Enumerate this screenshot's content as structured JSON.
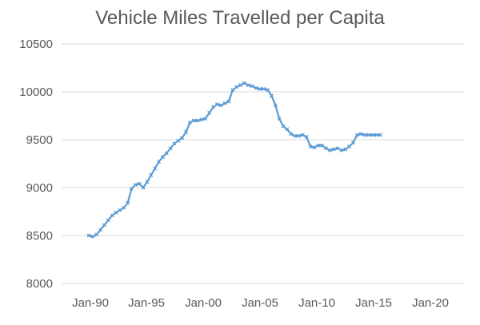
{
  "chart_data": {
    "type": "line",
    "title": "Vehicle Miles Travelled per Capita",
    "xlabel": "",
    "ylabel": "",
    "x_ticks": [
      "Jan-90",
      "Jan-95",
      "Jan-00",
      "Jan-05",
      "Jan-10",
      "Jan-15",
      "Jan-20"
    ],
    "y_ticks": [
      "8000",
      "8500",
      "9000",
      "9500",
      "10000",
      "10500"
    ],
    "xlim": [
      "1987-10",
      "2022-04"
    ],
    "ylim": [
      8000,
      10500
    ],
    "grid": true,
    "legend": "none",
    "series_color": "#5b9bd5",
    "x": [
      "1990-02",
      "1990-06",
      "1990-10",
      "1991-02",
      "1991-06",
      "1991-10",
      "1992-02",
      "1992-06",
      "1992-10",
      "1993-02",
      "1993-06",
      "1993-10",
      "1994-02",
      "1994-06",
      "1994-10",
      "1995-02",
      "1995-06",
      "1995-10",
      "1996-02",
      "1996-06",
      "1996-10",
      "1997-02",
      "1997-06",
      "1997-10",
      "1998-02",
      "1998-06",
      "1998-10",
      "1999-02",
      "1999-06",
      "1999-10",
      "2000-02",
      "2000-06",
      "2000-10",
      "2001-02",
      "2001-06",
      "2001-10",
      "2002-02",
      "2002-06",
      "2002-10",
      "2003-02",
      "2003-06",
      "2003-10",
      "2004-02",
      "2004-06",
      "2004-10",
      "2005-02",
      "2005-06",
      "2005-10",
      "2006-02",
      "2006-06",
      "2006-10",
      "2007-02",
      "2007-06",
      "2007-10",
      "2008-02",
      "2008-06",
      "2008-10",
      "2009-02",
      "2009-06",
      "2009-10",
      "2010-02",
      "2010-06",
      "2010-10",
      "2011-02",
      "2011-06",
      "2011-10",
      "2012-02",
      "2012-06",
      "2012-10",
      "2013-02",
      "2013-06",
      "2013-10",
      "2014-02",
      "2014-06",
      "2014-10",
      "2015-02"
    ],
    "series": [
      {
        "values": [
          8500,
          8490,
          8510,
          8560,
          8610,
          8660,
          8710,
          8740,
          8765,
          8790,
          8840,
          8990,
          9030,
          9040,
          9000,
          9060,
          9130,
          9200,
          9270,
          9320,
          9360,
          9410,
          9460,
          9490,
          9520,
          9580,
          9680,
          9700,
          9700,
          9710,
          9720,
          9780,
          9840,
          9870,
          9860,
          9880,
          9900,
          10020,
          10050,
          10070,
          10090,
          10070,
          10060,
          10040,
          10030,
          10030,
          10020,
          9960,
          9860,
          9720,
          9640,
          9610,
          9560,
          9540,
          9540,
          9550,
          9530,
          9430,
          9420,
          9440,
          9440,
          9410,
          9390,
          9400,
          9410,
          9390,
          9400,
          9430,
          9470,
          9550,
          9560,
          9550,
          9550,
          9550,
          9550,
          9550
        ]
      }
    ]
  }
}
